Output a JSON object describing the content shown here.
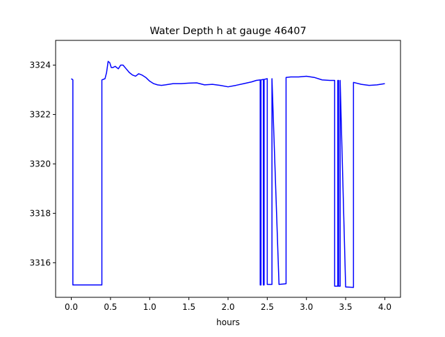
{
  "chart_data": {
    "type": "line",
    "title": "Water Depth h at gauge 46407",
    "xlabel": "hours",
    "ylabel": "",
    "xlim": [
      -0.2,
      4.2
    ],
    "ylim": [
      3314.6,
      3325.0
    ],
    "grid": false,
    "x_ticks": [
      0.0,
      0.5,
      1.0,
      1.5,
      2.0,
      2.5,
      3.0,
      3.5,
      4.0
    ],
    "x_tick_labels": [
      "0.0",
      "0.5",
      "1.0",
      "1.5",
      "2.0",
      "2.5",
      "3.0",
      "3.5",
      "4.0"
    ],
    "y_ticks": [
      3316,
      3318,
      3320,
      3322,
      3324
    ],
    "y_tick_labels": [
      "3316",
      "3318",
      "3320",
      "3322",
      "3324"
    ],
    "line_color": "#0000ff",
    "series": [
      {
        "x": [
          0.0,
          0.02,
          0.02,
          0.1,
          0.2,
          0.3,
          0.39,
          0.39,
          0.43,
          0.45,
          0.47,
          0.49,
          0.51,
          0.53,
          0.56,
          0.6,
          0.63,
          0.66,
          0.7,
          0.74,
          0.78,
          0.82,
          0.86,
          0.9,
          0.95,
          1.0,
          1.05,
          1.1,
          1.15,
          1.2,
          1.3,
          1.4,
          1.5,
          1.6,
          1.7,
          1.8,
          1.9,
          2.0,
          2.1,
          2.2,
          2.3,
          2.36,
          2.41,
          2.41,
          2.42,
          2.42,
          2.45,
          2.45,
          2.46,
          2.46,
          2.5,
          2.5,
          2.56,
          2.56,
          2.65,
          2.74,
          2.74,
          2.8,
          2.9,
          3.0,
          3.1,
          3.2,
          3.3,
          3.36,
          3.36,
          3.4,
          3.4,
          3.41,
          3.41,
          3.43,
          3.43,
          3.5,
          3.6,
          3.6,
          3.7,
          3.8,
          3.9,
          4.0
        ],
        "y": [
          3323.45,
          3323.4,
          3315.1,
          3315.1,
          3315.1,
          3315.1,
          3315.1,
          3323.4,
          3323.45,
          3323.7,
          3324.15,
          3324.1,
          3323.9,
          3323.9,
          3323.95,
          3323.85,
          3324.0,
          3324.0,
          3323.85,
          3323.7,
          3323.6,
          3323.55,
          3323.65,
          3323.6,
          3323.5,
          3323.35,
          3323.25,
          3323.2,
          3323.18,
          3323.2,
          3323.25,
          3323.25,
          3323.27,
          3323.28,
          3323.2,
          3323.22,
          3323.18,
          3323.12,
          3323.18,
          3323.25,
          3323.32,
          3323.38,
          3323.4,
          3315.1,
          3315.1,
          3323.4,
          3323.42,
          3315.1,
          3315.1,
          3323.42,
          3323.45,
          3315.12,
          3315.12,
          3323.45,
          3315.12,
          3315.15,
          3323.5,
          3323.52,
          3323.52,
          3323.55,
          3323.5,
          3323.4,
          3323.38,
          3323.38,
          3315.05,
          3315.05,
          3323.38,
          3323.38,
          3315.05,
          3315.05,
          3323.38,
          3315.02,
          3315.0,
          3323.3,
          3323.22,
          3323.18,
          3323.2,
          3323.25
        ]
      }
    ]
  }
}
